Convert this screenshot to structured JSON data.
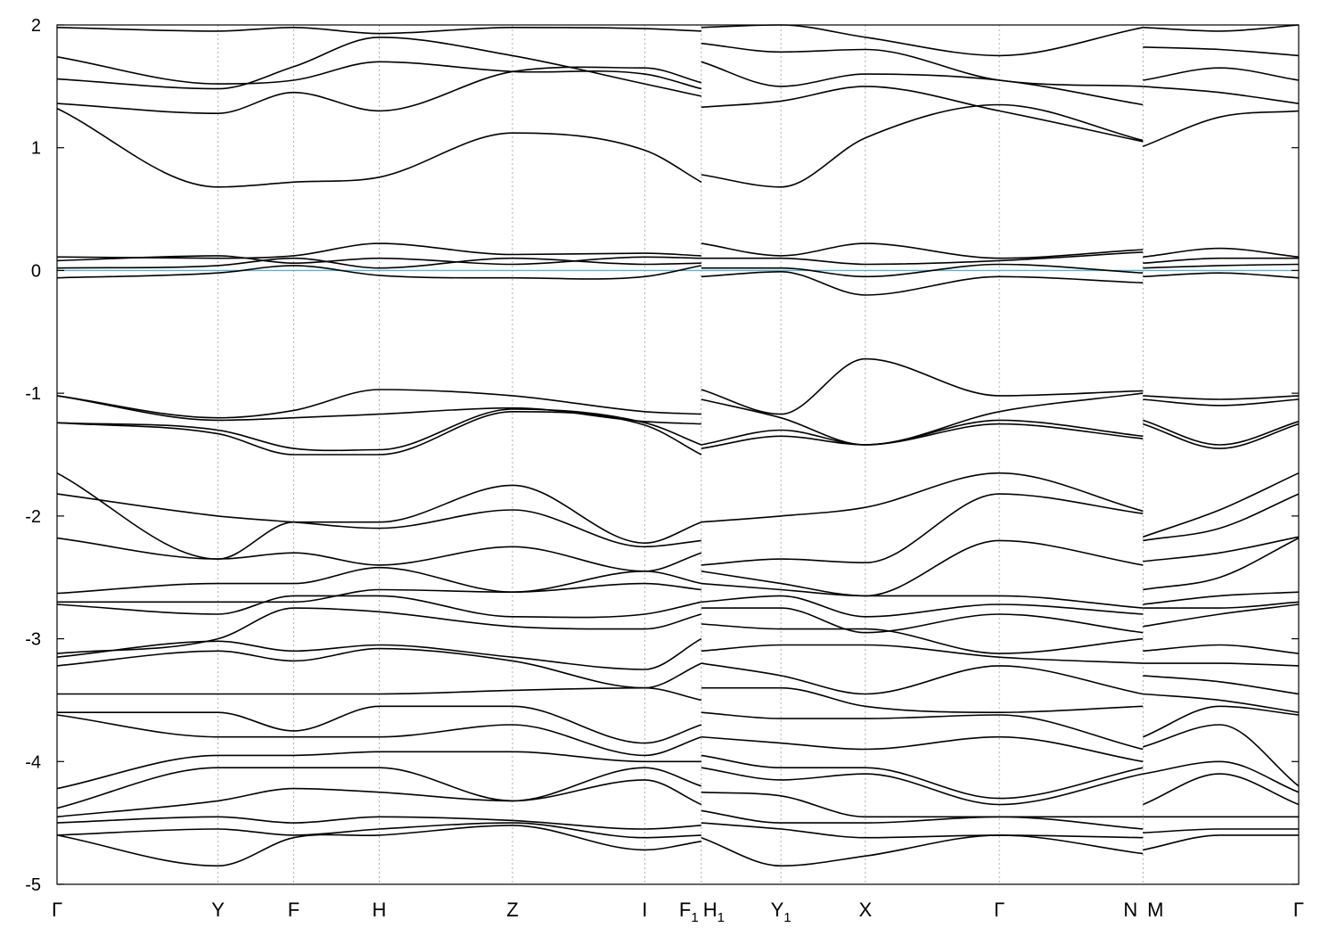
{
  "chart_data": {
    "type": "line",
    "title": "",
    "xlabel": "",
    "ylabel": "",
    "ylim": [
      -5,
      2
    ],
    "y_ticks": [
      2,
      1,
      0,
      -1,
      -2,
      -3,
      -4,
      -5
    ],
    "y_tick_labels": [
      "2",
      "1",
      "0",
      "-1",
      "-2",
      "-3",
      "-4",
      "-5"
    ],
    "k_path_segments": [
      [
        "Γ",
        "Y",
        "F",
        "H",
        "Z",
        "I",
        "F₁"
      ],
      [
        "H₁",
        "Y₁",
        "X",
        "Γ",
        "N"
      ],
      [
        "M",
        "Γ"
      ]
    ],
    "high_symmetry_points": [
      {
        "label": "Γ",
        "sub": "",
        "k": 0.0
      },
      {
        "label": "Y",
        "sub": "",
        "k": 0.1296
      },
      {
        "label": "F",
        "sub": "",
        "k": 0.1906
      },
      {
        "label": "H",
        "sub": "",
        "k": 0.2595
      },
      {
        "label": "Z",
        "sub": "",
        "k": 0.3668
      },
      {
        "label": "I",
        "sub": "",
        "k": 0.4733
      },
      {
        "label": "F",
        "sub": "1",
        "k": 0.5189
      },
      {
        "label": "H",
        "sub": "1",
        "k": 0.5189
      },
      {
        "label": "Y",
        "sub": "1",
        "k": 0.583
      },
      {
        "label": "X",
        "sub": "",
        "k": 0.651
      },
      {
        "label": "Γ",
        "sub": "",
        "k": 0.7589
      },
      {
        "label": "N",
        "sub": "",
        "k": 0.8746
      },
      {
        "label": "M",
        "sub": "",
        "k": 0.8746
      },
      {
        "label": "Γ",
        "sub": "",
        "k": 1.0
      }
    ],
    "fermi_level": 0,
    "fermi_color": "#5fb0c9",
    "band_color": "#000000",
    "grid": "vertical dashed lines at high-symmetry points",
    "legend": "none",
    "segments": [
      {
        "k_range": [
          0.0,
          0.5189
        ],
        "knots": [
          0.0,
          0.1296,
          0.1906,
          0.2595,
          0.3668,
          0.4733,
          0.5189
        ],
        "bands": [
          [
            1.98,
            1.95,
            1.98,
            1.93,
            1.98,
            1.97,
            1.95
          ],
          [
            1.74,
            1.52,
            1.55,
            1.7,
            1.62,
            1.6,
            1.48
          ],
          [
            1.56,
            1.48,
            1.66,
            1.9,
            1.75,
            1.52,
            1.42
          ],
          [
            1.36,
            1.28,
            1.45,
            1.3,
            1.62,
            1.65,
            1.53
          ],
          [
            1.32,
            0.68,
            0.72,
            0.76,
            1.12,
            0.98,
            0.72
          ],
          [
            0.11,
            0.1,
            0.12,
            0.22,
            0.13,
            0.14,
            0.12
          ],
          [
            0.08,
            0.12,
            0.06,
            0.1,
            0.05,
            0.11,
            0.1
          ],
          [
            0.02,
            0.04,
            0.1,
            0.02,
            0.1,
            0.05,
            0.06
          ],
          [
            -0.06,
            -0.02,
            0.04,
            -0.04,
            -0.06,
            -0.05,
            0.04
          ],
          [
            -1.02,
            -1.2,
            -1.14,
            -0.97,
            -1.02,
            -1.15,
            -1.17
          ],
          [
            -1.02,
            -1.22,
            -1.2,
            -1.17,
            -1.12,
            -1.23,
            -1.25
          ],
          [
            -1.24,
            -1.3,
            -1.45,
            -1.46,
            -1.13,
            -1.24,
            -1.42
          ],
          [
            -1.24,
            -1.33,
            -1.5,
            -1.5,
            -1.15,
            -1.26,
            -1.5
          ],
          [
            -1.65,
            -2.35,
            -2.05,
            -2.05,
            -1.75,
            -2.22,
            -2.05
          ],
          [
            -1.82,
            -2.0,
            -2.05,
            -2.1,
            -1.95,
            -2.25,
            -2.2
          ],
          [
            -2.18,
            -2.35,
            -2.3,
            -2.4,
            -2.25,
            -2.45,
            -2.3
          ],
          [
            -2.63,
            -2.55,
            -2.55,
            -2.42,
            -2.62,
            -2.45,
            -2.55
          ],
          [
            -2.7,
            -2.7,
            -2.7,
            -2.6,
            -2.62,
            -2.55,
            -2.6
          ],
          [
            -2.72,
            -2.8,
            -2.65,
            -2.65,
            -2.82,
            -2.8,
            -2.7
          ],
          [
            -3.12,
            -3.0,
            -2.75,
            -2.78,
            -2.9,
            -2.92,
            -2.8
          ],
          [
            -3.15,
            -3.02,
            -3.1,
            -3.05,
            -3.15,
            -3.25,
            -3.0
          ],
          [
            -3.22,
            -3.1,
            -3.18,
            -3.08,
            -3.18,
            -3.4,
            -3.2
          ],
          [
            -3.45,
            -3.45,
            -3.45,
            -3.45,
            -3.42,
            -3.4,
            -3.5
          ],
          [
            -3.6,
            -3.6,
            -3.75,
            -3.55,
            -3.55,
            -3.85,
            -3.7
          ],
          [
            -3.62,
            -3.8,
            -3.8,
            -3.8,
            -3.7,
            -3.95,
            -3.8
          ],
          [
            -4.22,
            -3.95,
            -3.95,
            -3.92,
            -3.92,
            -4.0,
            -4.0
          ],
          [
            -4.38,
            -4.05,
            -4.05,
            -4.05,
            -4.32,
            -4.05,
            -4.2
          ],
          [
            -4.45,
            -4.32,
            -4.22,
            -4.25,
            -4.32,
            -4.15,
            -4.35
          ],
          [
            -4.5,
            -4.45,
            -4.5,
            -4.45,
            -4.48,
            -4.55,
            -4.52
          ],
          [
            -4.6,
            -4.55,
            -4.6,
            -4.55,
            -4.5,
            -4.62,
            -4.6
          ],
          [
            -4.6,
            -4.85,
            -4.62,
            -4.6,
            -4.52,
            -4.72,
            -4.65
          ]
        ]
      },
      {
        "k_range": [
          0.5189,
          0.8746
        ],
        "knots": [
          0.5189,
          0.583,
          0.651,
          0.7589,
          0.8746
        ],
        "bands": [
          [
            1.98,
            2.0,
            1.9,
            1.75,
            1.98
          ],
          [
            1.85,
            1.78,
            1.8,
            1.55,
            1.5
          ],
          [
            1.7,
            1.5,
            1.6,
            1.55,
            1.35
          ],
          [
            1.33,
            1.38,
            1.5,
            1.3,
            1.05
          ],
          [
            0.78,
            0.68,
            1.08,
            1.35,
            1.06
          ],
          [
            0.22,
            0.12,
            0.22,
            0.1,
            0.17
          ],
          [
            0.1,
            0.1,
            0.05,
            0.08,
            0.15
          ],
          [
            0.02,
            0.02,
            -0.05,
            0.05,
            -0.02
          ],
          [
            -0.05,
            -0.01,
            -0.2,
            -0.05,
            -0.1
          ],
          [
            -0.97,
            -1.17,
            -0.72,
            -1.02,
            -0.98
          ],
          [
            -1.05,
            -1.2,
            -1.42,
            -1.15,
            -1.0
          ],
          [
            -1.42,
            -1.3,
            -1.42,
            -1.22,
            -1.35
          ],
          [
            -1.45,
            -1.35,
            -1.42,
            -1.25,
            -1.37
          ],
          [
            -2.05,
            -2.0,
            -1.93,
            -1.65,
            -1.96
          ],
          [
            -2.4,
            -2.35,
            -2.38,
            -1.82,
            -1.98
          ],
          [
            -2.45,
            -2.55,
            -2.65,
            -2.2,
            -2.4
          ],
          [
            -2.55,
            -2.6,
            -2.65,
            -2.65,
            -2.75
          ],
          [
            -2.7,
            -2.65,
            -2.82,
            -2.72,
            -2.8
          ],
          [
            -2.75,
            -2.75,
            -2.95,
            -2.8,
            -2.95
          ],
          [
            -2.88,
            -2.92,
            -2.92,
            -3.12,
            -3.0
          ],
          [
            -3.1,
            -3.05,
            -3.05,
            -3.15,
            -3.2
          ],
          [
            -3.2,
            -3.3,
            -3.45,
            -3.22,
            -3.45
          ],
          [
            -3.4,
            -3.4,
            -3.55,
            -3.6,
            -3.55
          ],
          [
            -3.6,
            -3.65,
            -3.65,
            -3.62,
            -3.9
          ],
          [
            -3.8,
            -3.85,
            -3.9,
            -3.8,
            -4.0
          ],
          [
            -3.95,
            -4.05,
            -4.05,
            -4.3,
            -4.05
          ],
          [
            -4.05,
            -4.15,
            -4.1,
            -4.35,
            -4.1
          ],
          [
            -4.25,
            -4.28,
            -4.45,
            -4.45,
            -4.45
          ],
          [
            -4.4,
            -4.5,
            -4.5,
            -4.45,
            -4.55
          ],
          [
            -4.5,
            -4.55,
            -4.62,
            -4.6,
            -4.62
          ],
          [
            -4.62,
            -4.85,
            -4.77,
            -4.6,
            -4.75
          ]
        ]
      },
      {
        "k_range": [
          0.8746,
          1.0
        ],
        "knots": [
          0.8746,
          0.9364,
          1.0
        ],
        "bands": [
          [
            1.98,
            1.95,
            2.0
          ],
          [
            1.82,
            1.8,
            1.75
          ],
          [
            1.55,
            1.65,
            1.55
          ],
          [
            1.5,
            1.45,
            1.36
          ],
          [
            1.01,
            1.25,
            1.3
          ],
          [
            0.11,
            0.18,
            0.11
          ],
          [
            0.06,
            0.1,
            0.1
          ],
          [
            0.02,
            0.04,
            0.05
          ],
          [
            -0.05,
            -0.02,
            -0.06
          ],
          [
            -1.02,
            -1.05,
            -1.02
          ],
          [
            -1.05,
            -1.1,
            -1.05
          ],
          [
            -1.22,
            -1.42,
            -1.23
          ],
          [
            -1.25,
            -1.45,
            -1.25
          ],
          [
            -2.17,
            -1.95,
            -1.65
          ],
          [
            -2.2,
            -2.1,
            -1.82
          ],
          [
            -2.37,
            -2.3,
            -2.17
          ],
          [
            -2.6,
            -2.5,
            -2.18
          ],
          [
            -2.72,
            -2.65,
            -2.62
          ],
          [
            -2.75,
            -2.75,
            -2.7
          ],
          [
            -2.9,
            -2.8,
            -2.72
          ],
          [
            -3.1,
            -3.05,
            -3.12
          ],
          [
            -3.2,
            -3.2,
            -3.22
          ],
          [
            -3.3,
            -3.35,
            -3.45
          ],
          [
            -3.45,
            -3.5,
            -3.6
          ],
          [
            -3.8,
            -3.55,
            -3.62
          ],
          [
            -3.88,
            -3.7,
            -4.2
          ],
          [
            -4.1,
            -4.0,
            -4.25
          ],
          [
            -4.35,
            -4.1,
            -4.35
          ],
          [
            -4.45,
            -4.45,
            -4.45
          ],
          [
            -4.58,
            -4.55,
            -4.55
          ],
          [
            -4.72,
            -4.6,
            -4.6
          ]
        ]
      }
    ]
  }
}
